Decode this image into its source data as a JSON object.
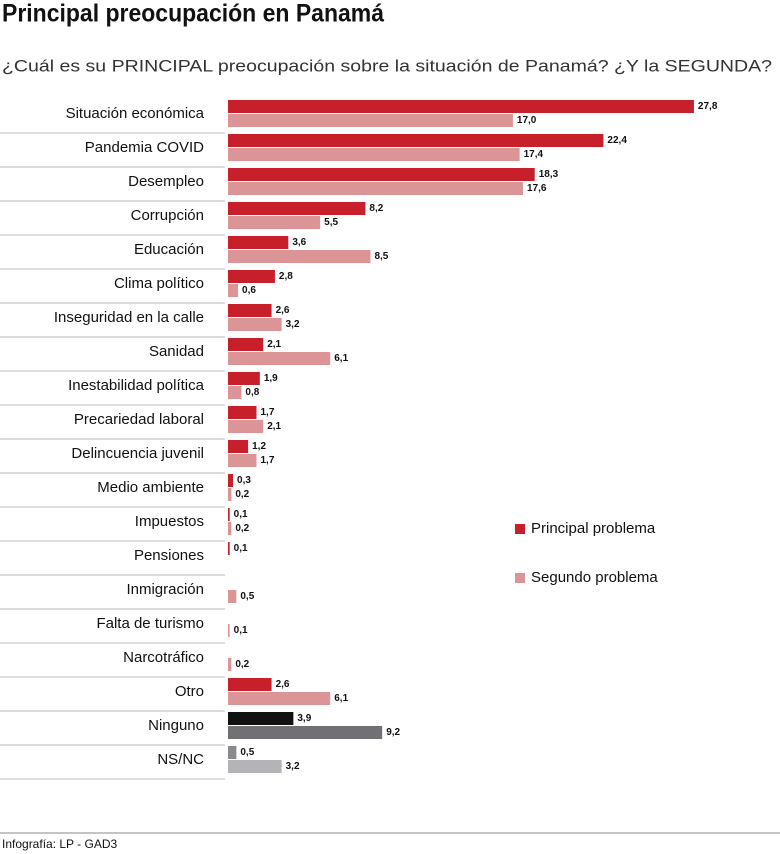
{
  "chart_data": {
    "type": "grouped-hbar",
    "title": "Principal preocupación en Panamá",
    "subtitle": "¿Cuál es su PRINCIPAL preocupación sobre la situación de Panamá? ¿Y la SEGUNDA?",
    "source": "Infografía: LP - GAD3",
    "categories": [
      "Situación económica",
      "Pandemia COVID",
      "Desempleo",
      "Corrupción",
      "Educación",
      "Clima político",
      "Inseguridad en la calle",
      "Sanidad",
      "Inestabilidad política",
      "Precariedad laboral",
      "Delincuencia juvenil",
      "Medio ambiente",
      "Impuestos",
      "Pensiones",
      "Inmigración",
      "Falta de turismo",
      "Narcotráfico",
      "Otro",
      "Ninguno",
      "NS/NC"
    ],
    "series": [
      {
        "name": "Principal problema",
        "color": "#c8202b",
        "colors": [
          "#c8202b",
          "#c8202b",
          "#c8202b",
          "#c8202b",
          "#c8202b",
          "#c8202b",
          "#c8202b",
          "#c8202b",
          "#c8202b",
          "#c8202b",
          "#c8202b",
          "#c8202b",
          "#c8202b",
          "#c8202b",
          "#c8202b",
          "#c8202b",
          "#c8202b",
          "#c8202b",
          "#111111",
          "#8a8a8e"
        ],
        "values": [
          27.8,
          22.4,
          18.3,
          8.2,
          3.6,
          2.8,
          2.6,
          2.1,
          1.9,
          1.7,
          1.2,
          0.3,
          0.1,
          0.1,
          null,
          null,
          null,
          2.6,
          3.9,
          0.5
        ],
        "value_labels": [
          "27,8",
          "22,4",
          "18,3",
          "8,2",
          "3,6",
          "2,8",
          "2,6",
          "2,1",
          "1,9",
          "1,7",
          "1,2",
          "0,3",
          "0,1",
          "0,1",
          null,
          null,
          null,
          "2,6",
          "3,9",
          "0,5"
        ]
      },
      {
        "name": "Segundo problema",
        "color": "#dc9597",
        "colors": [
          "#dc9597",
          "#dc9597",
          "#dc9597",
          "#dc9597",
          "#dc9597",
          "#dc9597",
          "#dc9597",
          "#dc9597",
          "#dc9597",
          "#dc9597",
          "#dc9597",
          "#dc9597",
          "#dc9597",
          "#dc9597",
          "#dc9597",
          "#dc9597",
          "#dc9597",
          "#dc9597",
          "#707075",
          "#b4b4b8"
        ],
        "values": [
          17.0,
          17.4,
          17.6,
          5.5,
          8.5,
          0.6,
          3.2,
          6.1,
          0.8,
          2.1,
          1.7,
          0.2,
          0.2,
          null,
          0.5,
          0.1,
          0.2,
          6.1,
          9.2,
          3.2
        ],
        "value_labels": [
          "17,0",
          "17,4",
          "17,6",
          "5,5",
          "8,5",
          "0,6",
          "3,2",
          "6,1",
          "0,8",
          "2,1",
          "1,7",
          "0,2",
          "0,2",
          null,
          "0,5",
          "0,1",
          "0,2",
          "6,1",
          "9,2",
          "3,2"
        ]
      }
    ]
  }
}
